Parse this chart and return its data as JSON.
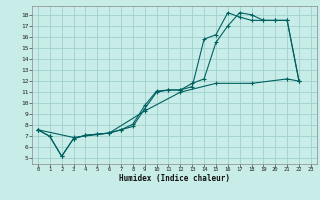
{
  "xlabel": "Humidex (Indice chaleur)",
  "bg_color": "#c8ede8",
  "grid_color": "#a0d0cc",
  "line_color": "#006060",
  "xlim": [
    -0.5,
    23.5
  ],
  "ylim": [
    4.5,
    18.8
  ],
  "xticks": [
    0,
    1,
    2,
    3,
    4,
    5,
    6,
    7,
    8,
    9,
    10,
    11,
    12,
    13,
    14,
    15,
    16,
    17,
    18,
    19,
    20,
    21,
    22,
    23
  ],
  "yticks": [
    5,
    6,
    7,
    8,
    9,
    10,
    11,
    12,
    13,
    14,
    15,
    16,
    17,
    18
  ],
  "line1_x": [
    0,
    1,
    2,
    3,
    4,
    5,
    6,
    7,
    8,
    9,
    10,
    11,
    12,
    13,
    14,
    15,
    16,
    17,
    18,
    19,
    20,
    21,
    22
  ],
  "line1_y": [
    7.6,
    7.0,
    5.2,
    6.8,
    7.1,
    7.2,
    7.3,
    7.6,
    8.1,
    9.8,
    11.1,
    11.2,
    11.2,
    11.8,
    12.2,
    15.5,
    17.0,
    18.2,
    18.0,
    17.5,
    17.5,
    17.5,
    12.0
  ],
  "line2_x": [
    0,
    1,
    2,
    3,
    4,
    5,
    6,
    7,
    8,
    9,
    10,
    11,
    12,
    13,
    14,
    15,
    16,
    17,
    18,
    19,
    20,
    21,
    22
  ],
  "line2_y": [
    7.6,
    7.0,
    5.2,
    6.8,
    7.1,
    7.2,
    7.3,
    7.6,
    7.9,
    9.5,
    11.0,
    11.2,
    11.2,
    11.5,
    15.8,
    16.2,
    18.2,
    17.8,
    17.5,
    17.5,
    17.5,
    17.5,
    12.0
  ],
  "line3_x": [
    0,
    3,
    6,
    9,
    12,
    15,
    18,
    21,
    22
  ],
  "line3_y": [
    7.6,
    6.9,
    7.3,
    9.3,
    11.0,
    11.8,
    11.8,
    12.2,
    12.0
  ]
}
